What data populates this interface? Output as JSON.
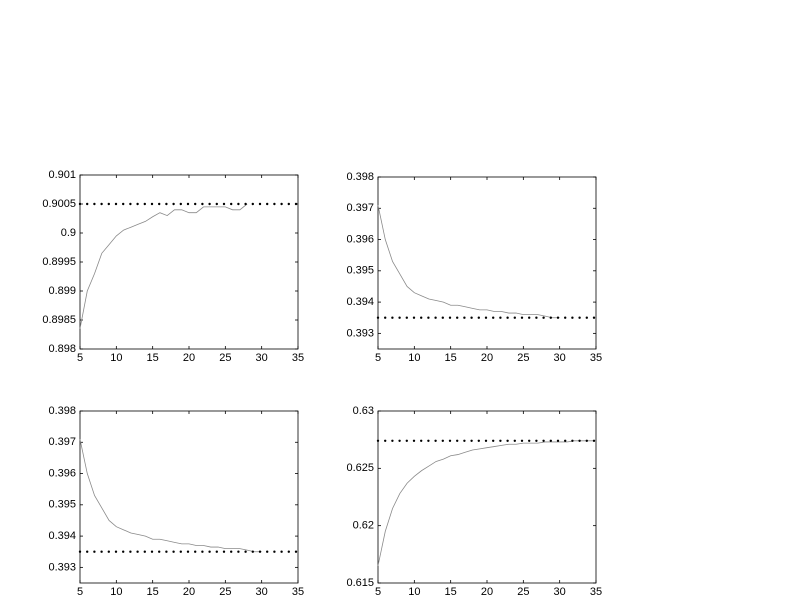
{
  "chart_data": [
    {
      "type": "line",
      "xlim": [
        5,
        35
      ],
      "xticks": [
        5,
        10,
        15,
        20,
        25,
        30,
        35
      ],
      "ylim": [
        0.898,
        0.901
      ],
      "yticks": [
        0.898,
        0.8985,
        0.899,
        0.8995,
        0.9,
        0.9005,
        0.901
      ],
      "grid": false,
      "series": [
        {
          "color": "#8a8a8a",
          "x": [
            5,
            6,
            7,
            8,
            9,
            10,
            11,
            12,
            13,
            14,
            15,
            16,
            17,
            18,
            19,
            20,
            21,
            22,
            23,
            24,
            25,
            26,
            27,
            28
          ],
          "values": [
            0.89835,
            0.899,
            0.8993,
            0.89965,
            0.8998,
            0.89995,
            0.90005,
            0.9001,
            0.90015,
            0.9002,
            0.90028,
            0.90035,
            0.9003,
            0.9004,
            0.9004,
            0.90035,
            0.90035,
            0.90045,
            0.90045,
            0.90045,
            0.90045,
            0.9004,
            0.9004,
            0.9005
          ]
        },
        {
          "color": "#000000",
          "style": "dotted",
          "x": [
            5,
            35
          ],
          "values": [
            0.9005,
            0.9005
          ]
        }
      ]
    },
    {
      "type": "line",
      "xlim": [
        5,
        35
      ],
      "xticks": [
        5,
        10,
        15,
        20,
        25,
        30,
        35
      ],
      "ylim": [
        0.3925,
        0.398
      ],
      "yticks": [
        0.393,
        0.394,
        0.395,
        0.396,
        0.397,
        0.398
      ],
      "grid": false,
      "series": [
        {
          "color": "#8a8a8a",
          "x": [
            5,
            6,
            7,
            8,
            9,
            10,
            11,
            12,
            13,
            14,
            15,
            16,
            17,
            18,
            19,
            20,
            21,
            22,
            23,
            24,
            25,
            26,
            27,
            28,
            29,
            30
          ],
          "values": [
            0.3971,
            0.396,
            0.3953,
            0.3949,
            0.3945,
            0.3943,
            0.3942,
            0.3941,
            0.39405,
            0.394,
            0.3939,
            0.3939,
            0.39385,
            0.3938,
            0.39375,
            0.39375,
            0.3937,
            0.3937,
            0.39365,
            0.39365,
            0.3936,
            0.3936,
            0.3936,
            0.39355,
            0.3935,
            0.3935
          ]
        },
        {
          "color": "#000000",
          "style": "dotted",
          "x": [
            5,
            35
          ],
          "values": [
            0.3935,
            0.3935
          ]
        }
      ]
    },
    {
      "type": "line",
      "xlim": [
        5,
        35
      ],
      "xticks": [
        5,
        10,
        15,
        20,
        25,
        30,
        35
      ],
      "ylim": [
        0.3925,
        0.398
      ],
      "yticks": [
        0.393,
        0.394,
        0.395,
        0.396,
        0.397,
        0.398
      ],
      "grid": false,
      "series": [
        {
          "color": "#8a8a8a",
          "x": [
            5,
            6,
            7,
            8,
            9,
            10,
            11,
            12,
            13,
            14,
            15,
            16,
            17,
            18,
            19,
            20,
            21,
            22,
            23,
            24,
            25,
            26,
            27,
            28,
            29,
            30
          ],
          "values": [
            0.3971,
            0.396,
            0.3953,
            0.3949,
            0.3945,
            0.3943,
            0.3942,
            0.3941,
            0.39405,
            0.394,
            0.3939,
            0.3939,
            0.39385,
            0.3938,
            0.39375,
            0.39375,
            0.3937,
            0.3937,
            0.39365,
            0.39365,
            0.3936,
            0.3936,
            0.3936,
            0.39355,
            0.3935,
            0.3935
          ]
        },
        {
          "color": "#000000",
          "style": "dotted",
          "x": [
            5,
            35
          ],
          "values": [
            0.3935,
            0.3935
          ]
        }
      ]
    },
    {
      "type": "line",
      "xlim": [
        5,
        35
      ],
      "xticks": [
        5,
        10,
        15,
        20,
        25,
        30,
        35
      ],
      "ylim": [
        0.615,
        0.63
      ],
      "yticks": [
        0.615,
        0.62,
        0.625,
        0.63
      ],
      "grid": false,
      "series": [
        {
          "color": "#8a8a8a",
          "x": [
            5,
            6,
            7,
            8,
            9,
            10,
            11,
            12,
            13,
            14,
            15,
            16,
            17,
            18,
            19,
            20,
            21,
            22,
            23,
            24,
            25,
            26,
            27,
            28,
            29,
            30,
            31,
            32,
            33,
            34,
            35
          ],
          "values": [
            0.6165,
            0.6195,
            0.6215,
            0.6228,
            0.6237,
            0.6243,
            0.6248,
            0.6252,
            0.6256,
            0.6258,
            0.6261,
            0.6262,
            0.6264,
            0.6266,
            0.6267,
            0.6268,
            0.6269,
            0.627,
            0.6271,
            0.6271,
            0.6272,
            0.6272,
            0.6272,
            0.6273,
            0.6273,
            0.6273,
            0.6273,
            0.6274,
            0.6274,
            0.6274,
            0.6274
          ]
        },
        {
          "color": "#000000",
          "style": "dotted",
          "x": [
            5,
            35
          ],
          "values": [
            0.6274,
            0.6274
          ]
        }
      ]
    }
  ]
}
